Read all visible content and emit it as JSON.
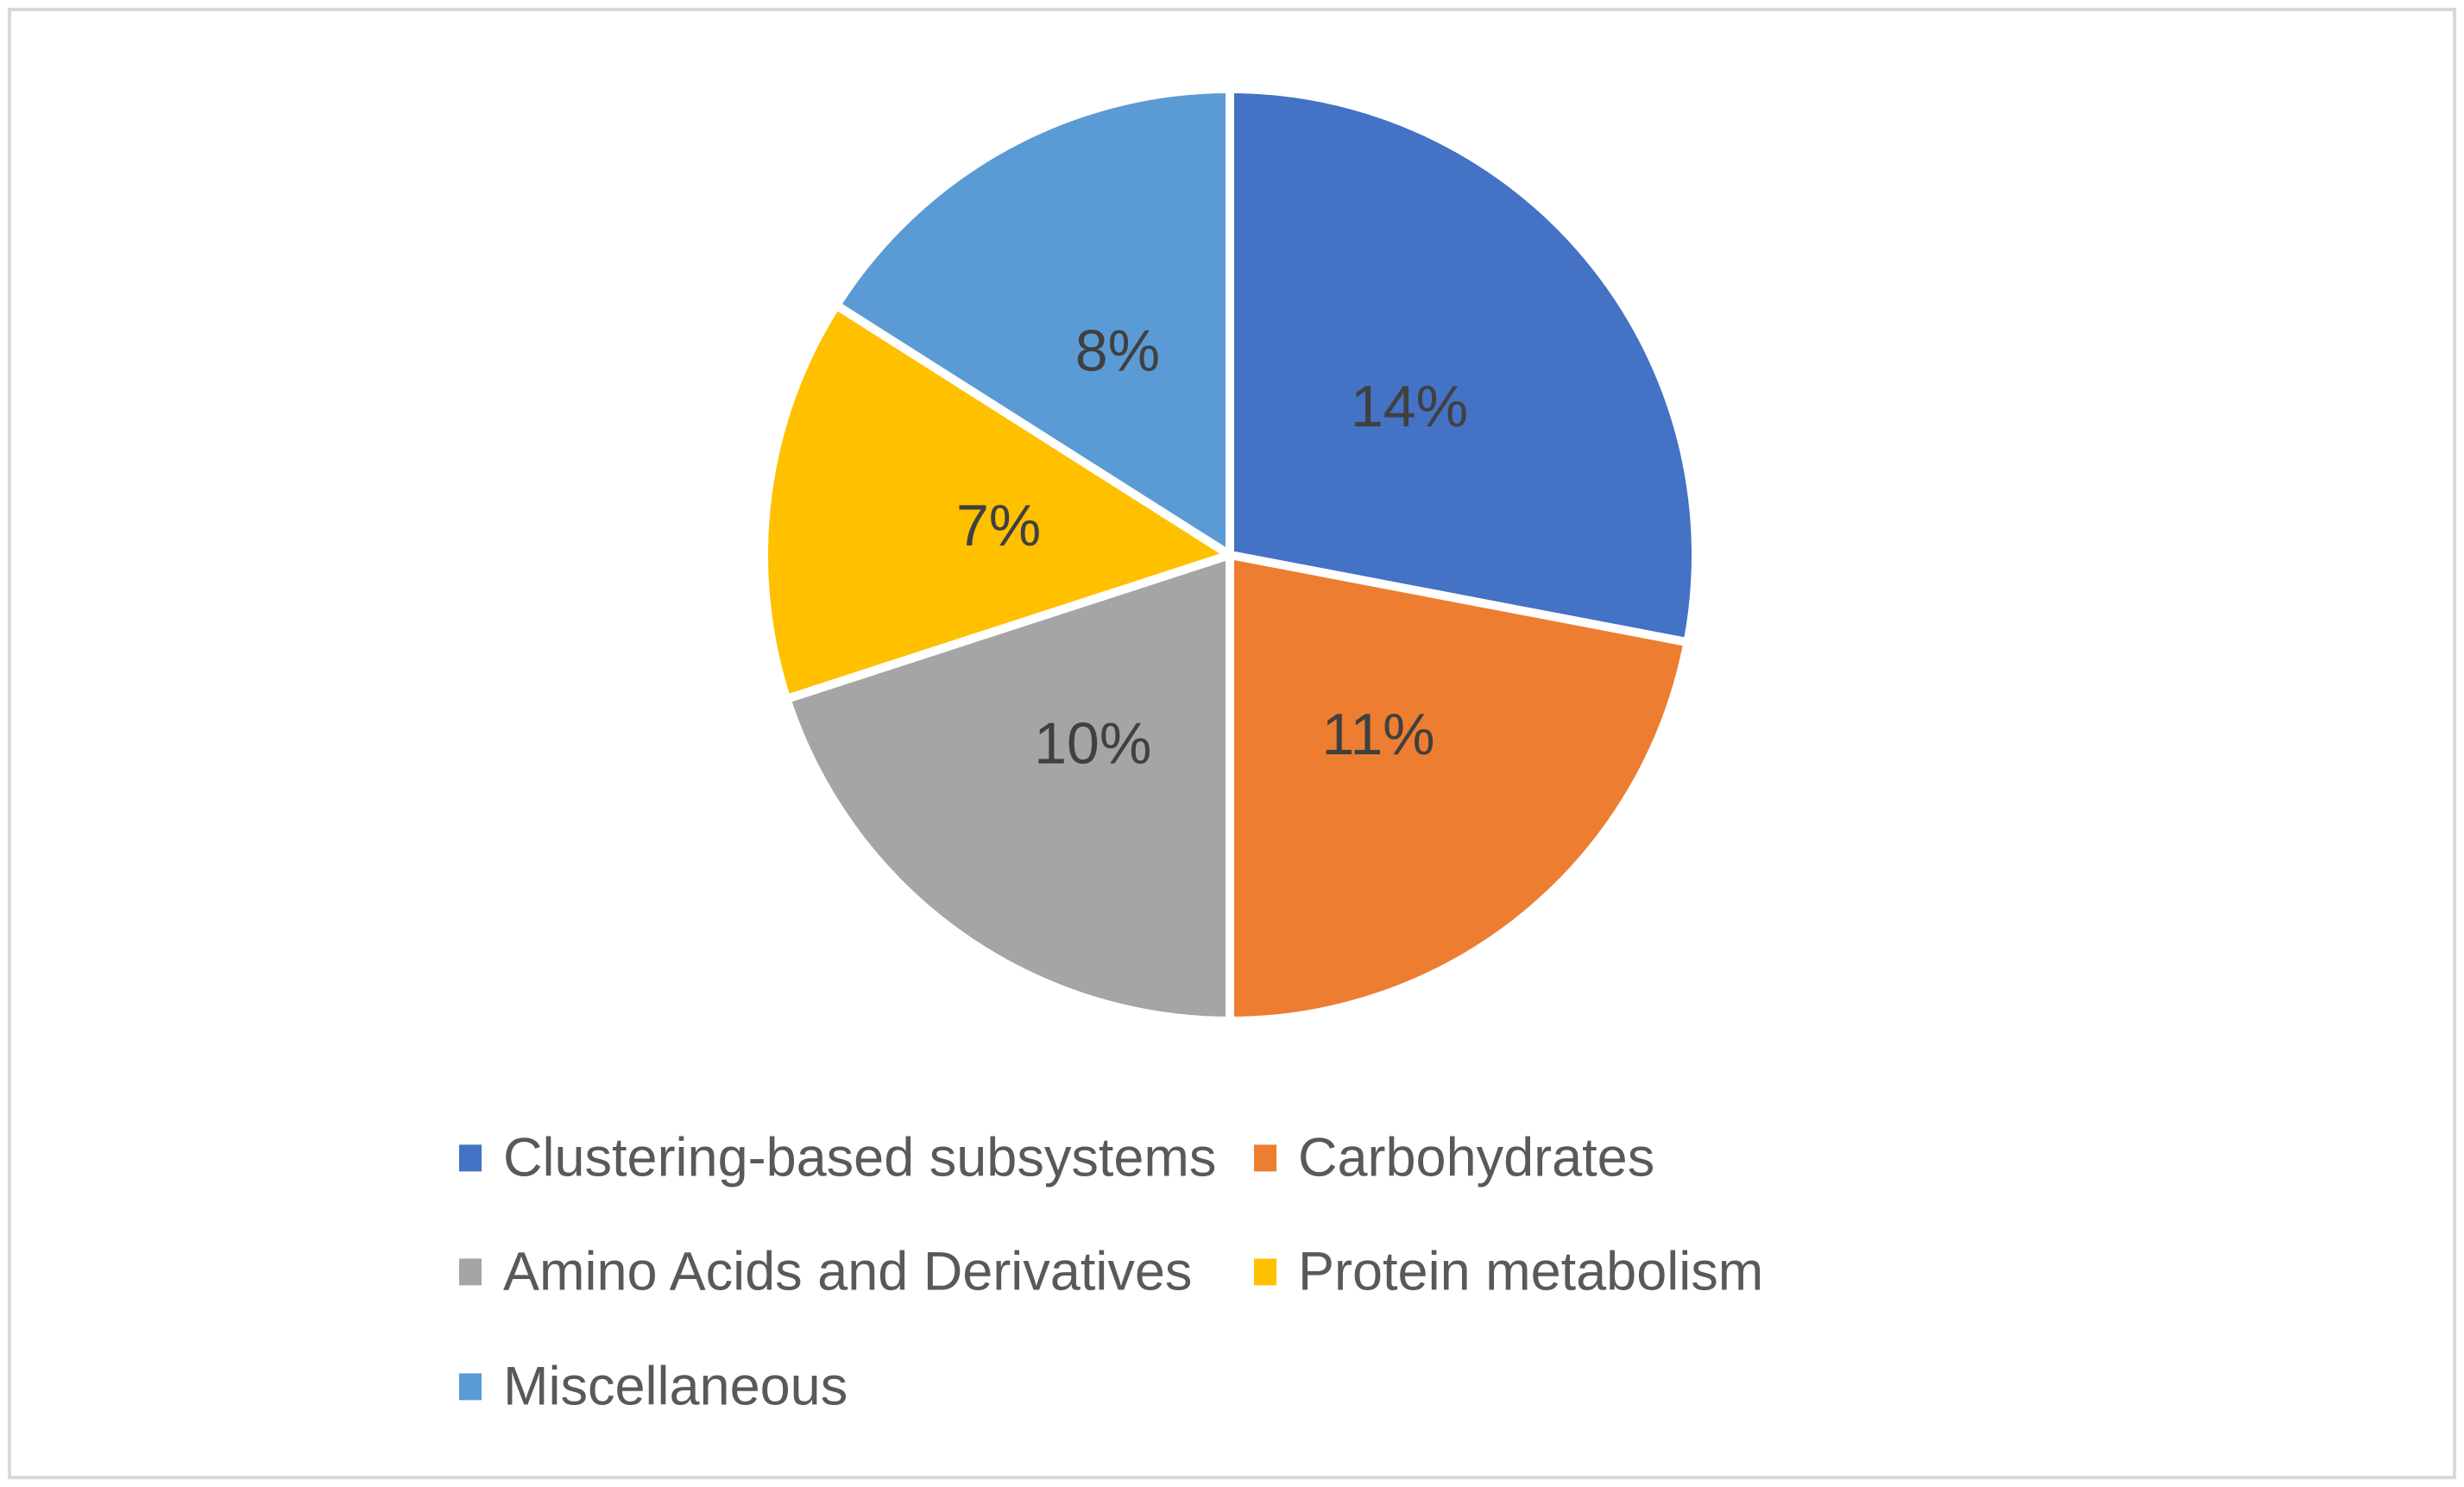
{
  "chart_data": {
    "type": "pie",
    "title": "",
    "slices": [
      {
        "label": "Clustering-based subsystems",
        "value": 14,
        "display": "14%",
        "color": "#4472C4"
      },
      {
        "label": "Carbohydrates",
        "value": 11,
        "display": "11%",
        "color": "#ED7D31"
      },
      {
        "label": "Amino Acids and Derivatives",
        "value": 10,
        "display": "10%",
        "color": "#A5A5A5"
      },
      {
        "label": "Protein metabolism",
        "value": 7,
        "display": "7%",
        "color": "#FFC000"
      },
      {
        "label": "Miscellaneous",
        "value": 8,
        "display": "8%",
        "color": "#5B9BD5"
      }
    ],
    "value_unit": "%",
    "start_angle_deg": 0,
    "direction": "clockwise",
    "data_label_color": "#404040",
    "data_label_distance_fraction": 0.5,
    "legend": {
      "position": "bottom",
      "columns": 2,
      "text_color": "#595959",
      "order": [
        "Clustering-based subsystems",
        "Carbohydrates",
        "Amino Acids and Derivatives",
        "Protein metabolism",
        "Miscellaneous"
      ]
    }
  },
  "frame": {
    "border_color": "#D9D9D9",
    "background": "#FFFFFF"
  }
}
